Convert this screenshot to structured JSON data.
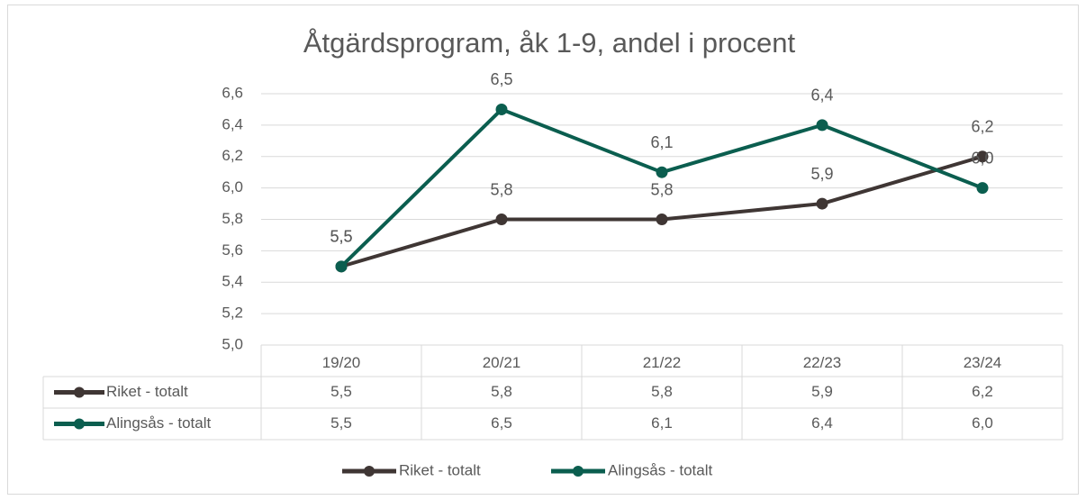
{
  "chart_data": {
    "type": "line",
    "title": "Åtgärdsprogram, åk 1-9, andel i procent",
    "categories": [
      "19/20",
      "20/21",
      "21/22",
      "22/23",
      "23/24"
    ],
    "series": [
      {
        "name": "Riket - totalt",
        "color": "#3f3634",
        "values": [
          5.5,
          5.8,
          5.8,
          5.9,
          6.2
        ],
        "value_labels": [
          "5,5",
          "5,8",
          "5,8",
          "5,9",
          "6,2"
        ]
      },
      {
        "name": "Alingsås - totalt",
        "color": "#0b5e4f",
        "values": [
          5.5,
          6.5,
          6.1,
          6.4,
          6.0
        ],
        "value_labels": [
          "5,5",
          "6,5",
          "6,1",
          "6,4",
          "6,0"
        ]
      }
    ],
    "ylim": [
      5.0,
      6.6
    ],
    "yticks": [
      {
        "value": 5.0,
        "label": "5,0"
      },
      {
        "value": 5.2,
        "label": "5,2"
      },
      {
        "value": 5.4,
        "label": "5,4"
      },
      {
        "value": 5.6,
        "label": "5,6"
      },
      {
        "value": 5.8,
        "label": "5,8"
      },
      {
        "value": 6.0,
        "label": "6,0"
      },
      {
        "value": 6.2,
        "label": "6,2"
      },
      {
        "value": 6.4,
        "label": "6,4"
      },
      {
        "value": 6.6,
        "label": "6,6"
      }
    ],
    "grid": true,
    "legend": "bottom"
  }
}
